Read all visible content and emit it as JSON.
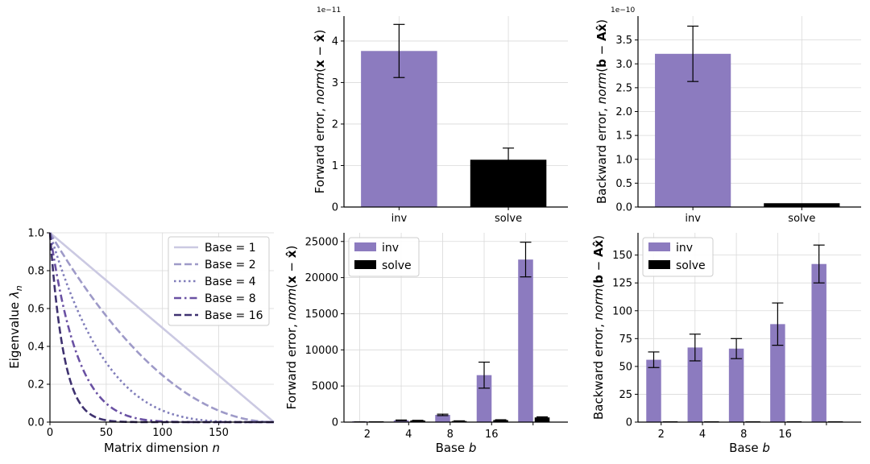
{
  "chart_data": [
    {
      "id": "eigen",
      "type": "line",
      "xlabel": "Matrix dimension n",
      "ylabel": "Eigenvalue λn",
      "xlim": [
        0,
        199
      ],
      "ylim": [
        0,
        1.0
      ],
      "xticks": [
        "0",
        "50",
        "100",
        "150"
      ],
      "xtick_values": [
        0,
        50,
        100,
        150
      ],
      "yticks": [
        "0.0",
        "0.2",
        "0.4",
        "0.6",
        "0.8",
        "1.0"
      ],
      "ytick_values": [
        0,
        0.2,
        0.4,
        0.6,
        0.8,
        1.0
      ],
      "grid": true,
      "legend_position": "top-right",
      "series": [
        {
          "name": "Base = 1",
          "base": 1,
          "color": "#cbc9e2",
          "dash": "solid"
        },
        {
          "name": "Base = 2",
          "base": 2,
          "color": "#9e9ac8",
          "dash": "dashed"
        },
        {
          "name": "Base = 4",
          "base": 4,
          "color": "#807dba",
          "dash": "dotted"
        },
        {
          "name": "Base = 8",
          "base": 8,
          "color": "#6a51a3",
          "dash": "dashdot"
        },
        {
          "name": "Base = 16",
          "base": 16,
          "color": "#3f3270",
          "dash": "dashed"
        }
      ]
    },
    {
      "id": "fwd-top",
      "type": "bar",
      "ylabel": "Forward error, norm(x − x̂)",
      "offset_text": "1e−11",
      "categories": [
        "inv",
        "solve"
      ],
      "values": [
        3.76,
        1.14
      ],
      "errors": [
        0.64,
        0.28
      ],
      "colors": [
        "#8c7bbf",
        "#000000"
      ],
      "ylim": [
        0,
        4.6
      ],
      "yticks": [
        "0",
        "1",
        "2",
        "3",
        "4"
      ],
      "ytick_values": [
        0,
        1,
        2,
        3,
        4
      ],
      "grid": true
    },
    {
      "id": "bwd-top",
      "type": "bar",
      "ylabel": "Backward error, norm(b − Ax̂)",
      "offset_text": "1e−10",
      "categories": [
        "inv",
        "solve"
      ],
      "values": [
        3.21,
        0.08
      ],
      "errors": [
        0.58,
        0.0
      ],
      "colors": [
        "#8c7bbf",
        "#000000"
      ],
      "ylim": [
        0,
        4.0
      ],
      "yticks": [
        "0.0",
        "0.5",
        "1.0",
        "1.5",
        "2.0",
        "2.5",
        "3.0",
        "3.5"
      ],
      "ytick_values": [
        0,
        0.5,
        1.0,
        1.5,
        2.0,
        2.5,
        3.0,
        3.5
      ],
      "grid": true
    },
    {
      "id": "fwd-bottom",
      "type": "bar",
      "xlabel": "Base b",
      "ylabel": "Forward error, norm(x − x̂)",
      "categories": [
        "2",
        "4",
        "8",
        "16",
        ""
      ],
      "ylim": [
        0,
        26200
      ],
      "yticks": [
        "0",
        "5000",
        "10000",
        "15000",
        "20000",
        "25000"
      ],
      "ytick_values": [
        0,
        5000,
        10000,
        15000,
        20000,
        25000
      ],
      "grid": true,
      "legend_position": "top-left",
      "series": [
        {
          "name": "inv",
          "color": "#8c7bbf",
          "values": [
            20,
            250,
            1000,
            6500,
            22500
          ],
          "errors": [
            5,
            40,
            100,
            1800,
            2400
          ]
        },
        {
          "name": "solve",
          "color": "#000000",
          "values": [
            10,
            220,
            150,
            280,
            650
          ],
          "errors": [
            3,
            30,
            30,
            50,
            80
          ]
        }
      ]
    },
    {
      "id": "bwd-bottom",
      "type": "bar",
      "xlabel": "Base b",
      "ylabel": "Backward error, norm(b − Ax̂)",
      "categories": [
        "2",
        "4",
        "8",
        "16",
        ""
      ],
      "ylim": [
        0,
        170
      ],
      "yticks": [
        "0",
        "25",
        "50",
        "75",
        "100",
        "125",
        "150"
      ],
      "ytick_values": [
        0,
        25,
        50,
        75,
        100,
        125,
        150
      ],
      "grid": true,
      "legend_position": "top-left",
      "series": [
        {
          "name": "inv",
          "color": "#8c7bbf",
          "values": [
            56,
            67,
            66,
            88,
            142
          ],
          "errors": [
            7,
            12,
            9,
            19,
            17
          ]
        },
        {
          "name": "solve",
          "color": "#000000",
          "values": [
            0.3,
            0.3,
            0.3,
            0.3,
            0.3
          ],
          "errors": [
            0,
            0,
            0,
            0,
            0
          ]
        }
      ]
    }
  ]
}
